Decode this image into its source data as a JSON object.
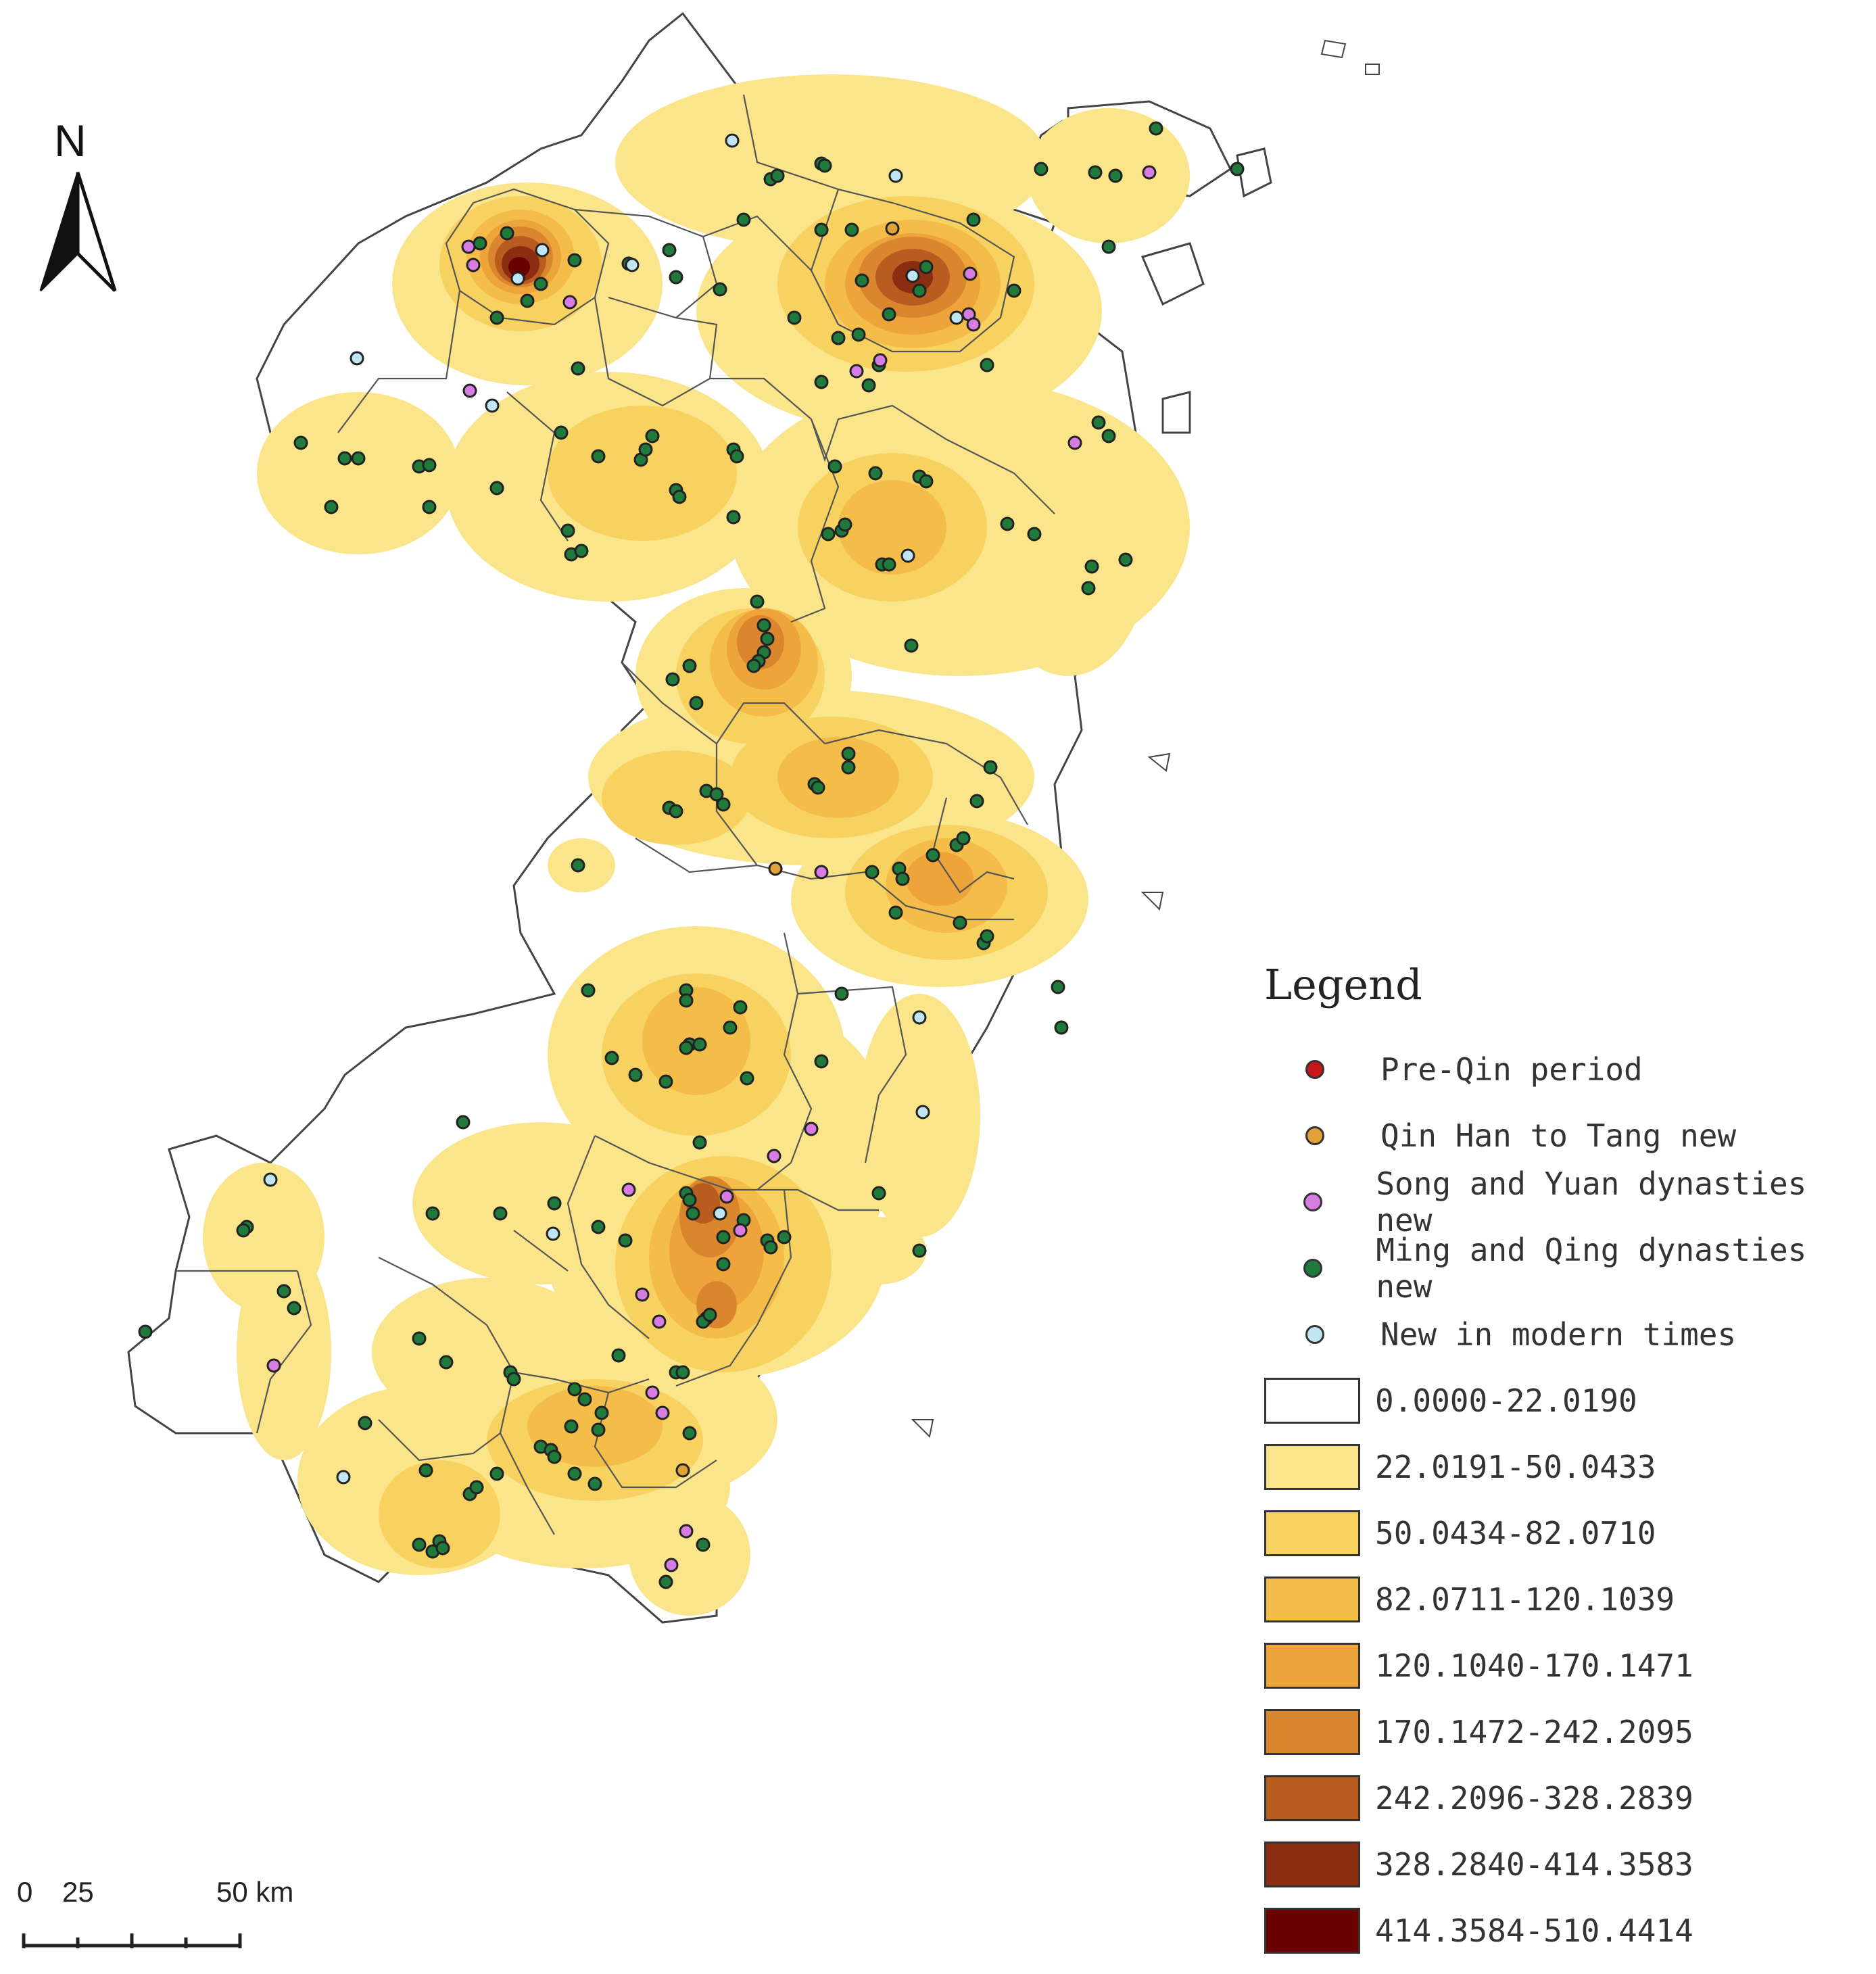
{
  "north_arrow": {
    "label": "N"
  },
  "legend": {
    "title": "Legend",
    "point_classes": [
      {
        "label": "Pre-Qin period",
        "color": "#c8171b"
      },
      {
        "label": "Qin Han to Tang new",
        "color": "#e2a23a"
      },
      {
        "label": "Song and Yuan dynasties new",
        "color": "#d77ce0"
      },
      {
        "label": "Ming and Qing dynasties new",
        "color": "#1f7a3c"
      },
      {
        "label": "New in modern times",
        "color": "#bfe6f2"
      }
    ],
    "density_classes": [
      {
        "label": "0.0000-22.0190",
        "color": "#ffffff"
      },
      {
        "label": "22.0191-50.0433",
        "color": "#fbe58a"
      },
      {
        "label": "50.0434-82.0710",
        "color": "#f8d260"
      },
      {
        "label": "82.0711-120.1039",
        "color": "#f4bc48"
      },
      {
        "label": "120.1040-170.1471",
        "color": "#eda43a"
      },
      {
        "label": "170.1472-242.2095",
        "color": "#d9862e"
      },
      {
        "label": "242.2096-328.2839",
        "color": "#b85d1f"
      },
      {
        "label": "328.2840-414.3583",
        "color": "#8b2d10"
      },
      {
        "label": "414.3584-510.4414",
        "color": "#6b0000"
      }
    ]
  },
  "scale_bar": {
    "labels": [
      "0",
      "25",
      "50 km"
    ]
  }
}
